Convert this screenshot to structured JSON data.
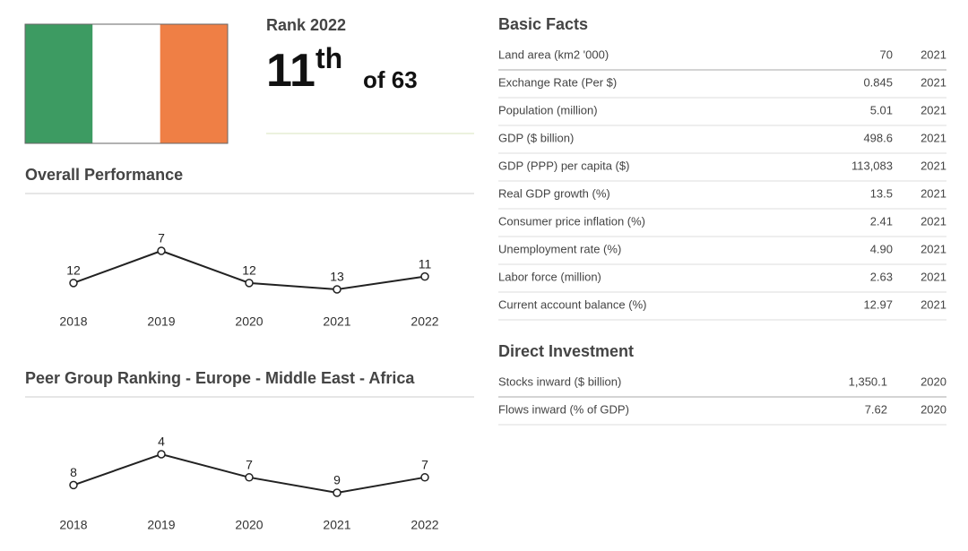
{
  "flag": {
    "colors": [
      "#3d9b62",
      "#ffffff",
      "#ef7f45"
    ]
  },
  "rank": {
    "title": "Rank 2022",
    "value": "11",
    "suffix": "th",
    "of": "of 63"
  },
  "chart_data": [
    {
      "type": "line",
      "title": "Overall Performance",
      "categories": [
        "2018",
        "2019",
        "2020",
        "2021",
        "2022"
      ],
      "values": [
        12,
        7,
        12,
        13,
        11
      ],
      "color": "#222222",
      "y_inverted": true
    },
    {
      "type": "line",
      "title": "Peer Group Ranking - Europe - Middle East - Africa",
      "categories": [
        "2018",
        "2019",
        "2020",
        "2021",
        "2022"
      ],
      "values": [
        8,
        4,
        7,
        9,
        7
      ],
      "color": "#222222",
      "y_inverted": true
    }
  ],
  "basic_facts": {
    "title": "Basic Facts",
    "rows": [
      [
        "Land area (km2 '000)",
        "70",
        "2021"
      ],
      [
        "Exchange Rate (Per $)",
        "0.845",
        "2021"
      ],
      [
        "Population (million)",
        "5.01",
        "2021"
      ],
      [
        "GDP ($ billion)",
        "498.6",
        "2021"
      ],
      [
        "GDP (PPP) per capita ($)",
        "113,083",
        "2021"
      ],
      [
        "Real GDP growth (%)",
        "13.5",
        "2021"
      ],
      [
        "Consumer price inflation (%)",
        "2.41",
        "2021"
      ],
      [
        "Unemployment rate (%)",
        "4.90",
        "2021"
      ],
      [
        "Labor force (million)",
        "2.63",
        "2021"
      ],
      [
        "Current account balance (%)",
        "12.97",
        "2021"
      ]
    ]
  },
  "direct_investment": {
    "title": "Direct Investment",
    "rows": [
      [
        "Stocks inward ($ billion)",
        "1,350.1",
        "2020"
      ],
      [
        "Flows inward (% of GDP)",
        "7.62",
        "2020"
      ]
    ]
  }
}
